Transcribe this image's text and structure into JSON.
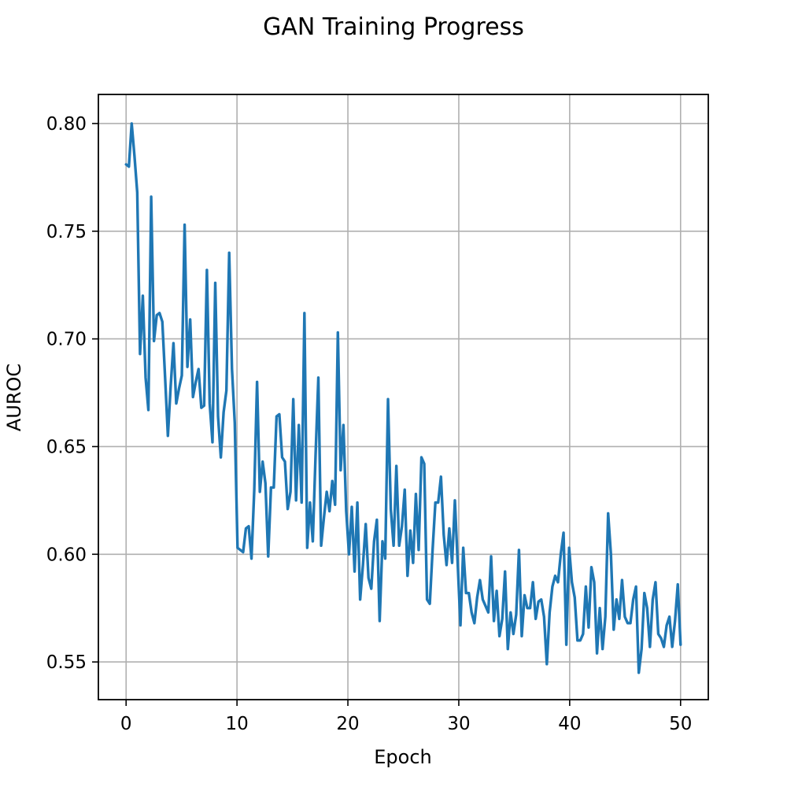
{
  "chart_data": {
    "type": "line",
    "title": "GAN Training Progress",
    "xlabel": "Epoch",
    "ylabel": "AUROC",
    "xlim": [
      -2.5,
      52.5
    ],
    "ylim": [
      0.5325,
      0.8135
    ],
    "xticks": [
      0,
      10,
      20,
      30,
      40,
      50
    ],
    "xtick_labels": [
      "0",
      "10",
      "20",
      "30",
      "40",
      "50"
    ],
    "yticks": [
      0.55,
      0.6,
      0.65,
      0.7,
      0.75,
      0.8
    ],
    "ytick_labels": [
      "0.55",
      "0.60",
      "0.65",
      "0.70",
      "0.75",
      "0.80"
    ],
    "grid": true,
    "series": [
      {
        "color": "#1f77b4",
        "x_start": 0,
        "x_end": 50,
        "values": [
          0.781,
          0.78,
          0.8,
          0.785,
          0.768,
          0.693,
          0.72,
          0.682,
          0.667,
          0.766,
          0.699,
          0.711,
          0.712,
          0.708,
          0.682,
          0.655,
          0.678,
          0.698,
          0.67,
          0.677,
          0.683,
          0.753,
          0.687,
          0.709,
          0.673,
          0.68,
          0.686,
          0.668,
          0.669,
          0.732,
          0.67,
          0.652,
          0.726,
          0.664,
          0.645,
          0.666,
          0.676,
          0.74,
          0.686,
          0.661,
          0.603,
          0.602,
          0.601,
          0.612,
          0.613,
          0.598,
          0.63,
          0.68,
          0.629,
          0.643,
          0.633,
          0.599,
          0.631,
          0.631,
          0.664,
          0.665,
          0.645,
          0.643,
          0.621,
          0.629,
          0.672,
          0.625,
          0.66,
          0.624,
          0.712,
          0.603,
          0.624,
          0.606,
          0.646,
          0.682,
          0.604,
          0.617,
          0.629,
          0.62,
          0.634,
          0.623,
          0.703,
          0.639,
          0.66,
          0.62,
          0.6,
          0.622,
          0.592,
          0.624,
          0.579,
          0.595,
          0.614,
          0.589,
          0.584,
          0.606,
          0.616,
          0.569,
          0.606,
          0.598,
          0.672,
          0.621,
          0.604,
          0.641,
          0.604,
          0.613,
          0.63,
          0.59,
          0.611,
          0.596,
          0.628,
          0.602,
          0.645,
          0.642,
          0.579,
          0.577,
          0.602,
          0.624,
          0.624,
          0.636,
          0.609,
          0.595,
          0.612,
          0.596,
          0.625,
          0.596,
          0.567,
          0.603,
          0.582,
          0.582,
          0.573,
          0.568,
          0.58,
          0.588,
          0.579,
          0.576,
          0.573,
          0.599,
          0.569,
          0.583,
          0.562,
          0.57,
          0.592,
          0.556,
          0.573,
          0.563,
          0.572,
          0.602,
          0.562,
          0.581,
          0.575,
          0.575,
          0.587,
          0.57,
          0.578,
          0.579,
          0.571,
          0.549,
          0.573,
          0.585,
          0.59,
          0.587,
          0.6,
          0.61,
          0.558,
          0.603,
          0.587,
          0.58,
          0.56,
          0.56,
          0.563,
          0.585,
          0.566,
          0.594,
          0.587,
          0.554,
          0.575,
          0.556,
          0.571,
          0.619,
          0.6,
          0.565,
          0.579,
          0.57,
          0.588,
          0.571,
          0.568,
          0.568,
          0.579,
          0.585,
          0.545,
          0.556,
          0.582,
          0.575,
          0.557,
          0.579,
          0.587,
          0.563,
          0.561,
          0.557,
          0.567,
          0.571,
          0.557,
          0.569,
          0.586,
          0.558
        ]
      }
    ]
  }
}
